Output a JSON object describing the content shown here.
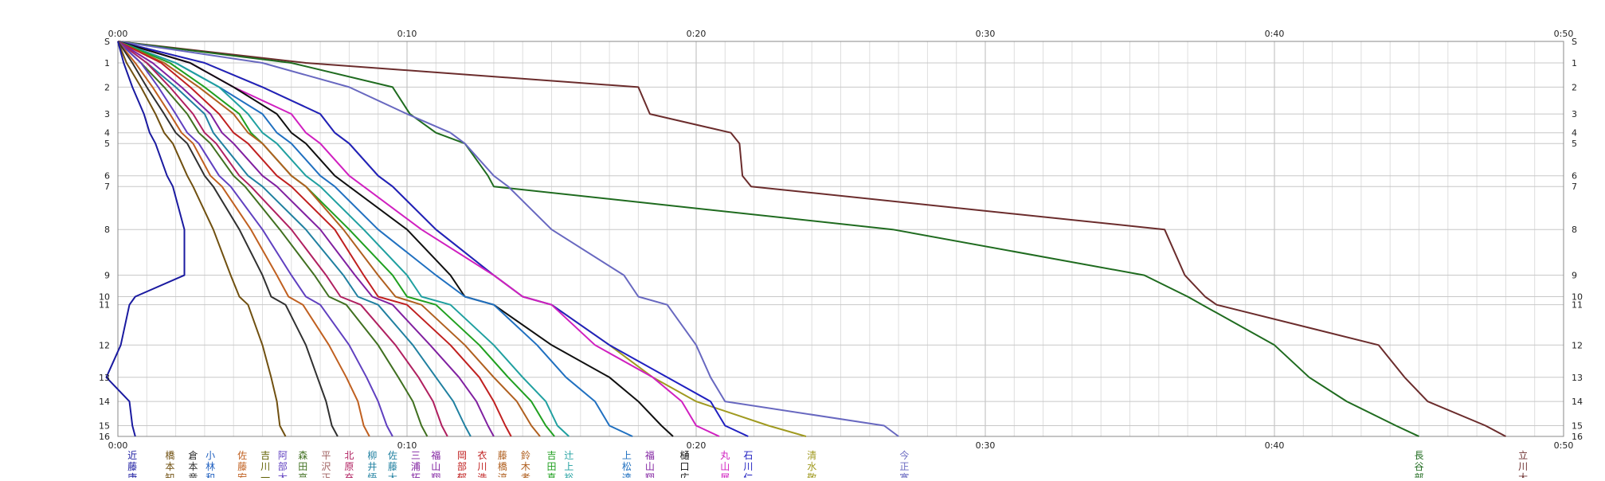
{
  "chart_data": {
    "type": "line",
    "title": "",
    "x_unit": "elapsed time (m:ss)",
    "xlim": [
      0,
      50
    ],
    "x_ticks": [
      {
        "value": 0,
        "label": "0:00"
      },
      {
        "value": 10,
        "label": "0:10"
      },
      {
        "value": 20,
        "label": "0:20"
      },
      {
        "value": 30,
        "label": "0:30"
      },
      {
        "value": 40,
        "label": "0:40"
      },
      {
        "value": 50,
        "label": "0:50"
      }
    ],
    "x_ticks_bottom": [
      {
        "value": 0,
        "label": "0:00"
      },
      {
        "value": 10,
        "label": "0:10"
      },
      {
        "value": 20,
        "label": "0:20"
      },
      {
        "value": 30,
        "label": "0:30"
      },
      {
        "value": 40,
        "label": "0:40"
      },
      {
        "value": 50,
        "label": "0:50"
      }
    ],
    "y_ticks": [
      {
        "value": 0,
        "label": "S"
      },
      {
        "value": 1,
        "label": "1"
      },
      {
        "value": 2,
        "label": "2"
      },
      {
        "value": 3,
        "label": "3"
      },
      {
        "value": 4,
        "label": "4"
      },
      {
        "value": 5,
        "label": "5"
      },
      {
        "value": 6,
        "label": "6"
      },
      {
        "value": 7,
        "label": "7"
      },
      {
        "value": 8,
        "label": "8"
      },
      {
        "value": 9,
        "label": "9"
      },
      {
        "value": 10,
        "label": "10"
      },
      {
        "value": 11,
        "label": "11"
      },
      {
        "value": 12,
        "label": "12"
      },
      {
        "value": 13,
        "label": "13"
      },
      {
        "value": 14,
        "label": "14"
      },
      {
        "value": 15,
        "label": "15"
      },
      {
        "value": 16,
        "label": "16"
      }
    ],
    "control_times": [
      0,
      0.8,
      1.7,
      2.7,
      3.4,
      3.8,
      5.0,
      5.4,
      7.0,
      8.7,
      9.5,
      9.8,
      11.3,
      12.5,
      13.4,
      14.3,
      14.7
    ],
    "grid": true,
    "series": [
      {
        "name": "立川大",
        "color": "#6b2c2c",
        "cum": [
          0.0,
          6.5,
          18.0,
          18.4,
          21.2,
          21.5,
          21.6,
          21.9,
          36.2,
          36.9,
          37.6,
          38.0,
          43.6,
          44.5,
          45.3,
          47.3,
          48.0
        ]
      },
      {
        "name": "長谷部",
        "color": "#1f6b1f",
        "cum": [
          0.0,
          6.0,
          9.5,
          10.1,
          11.0,
          12.0,
          12.8,
          13.0,
          26.8,
          35.5,
          37.0,
          37.5,
          40.0,
          41.2,
          42.5,
          44.2,
          45.0
        ]
      },
      {
        "name": "今正寛",
        "color": "#6868c0",
        "cum": [
          0.0,
          5.0,
          8.0,
          10.0,
          11.5,
          12.0,
          13.0,
          13.5,
          15.0,
          17.5,
          18.0,
          19.0,
          20.0,
          20.5,
          21.0,
          26.5,
          27.0
        ]
      },
      {
        "name": "清水敬",
        "color": "#a09a20",
        "cum": [
          0.0,
          3.0,
          5.0,
          7.0,
          7.5,
          8.0,
          9.0,
          9.5,
          11.0,
          13.0,
          14.0,
          15.0,
          17.0,
          18.5,
          20.0,
          22.5,
          23.8
        ]
      },
      {
        "name": "石川仁",
        "color": "#2020c0",
        "cum": [
          0.0,
          3.0,
          5.0,
          7.0,
          7.5,
          8.0,
          9.0,
          9.5,
          11.0,
          13.0,
          14.0,
          15.0,
          17.0,
          19.0,
          20.5,
          21.0,
          21.8
        ]
      },
      {
        "name": "丸山展",
        "color": "#d020c0",
        "cum": [
          0.0,
          2.5,
          4.0,
          6.0,
          6.5,
          7.0,
          8.0,
          8.5,
          10.5,
          13.0,
          14.0,
          15.0,
          16.5,
          18.5,
          19.5,
          20.0,
          20.8
        ]
      },
      {
        "name": "樋口広",
        "color": "#101010",
        "cum": [
          0.0,
          2.5,
          4.0,
          5.5,
          6.0,
          6.5,
          7.5,
          8.0,
          10.0,
          11.5,
          12.0,
          13.0,
          15.0,
          17.0,
          18.0,
          18.8,
          19.2
        ]
      },
      {
        "name": "上松達",
        "color": "#2070c0",
        "cum": [
          0.0,
          2.0,
          3.5,
          5.0,
          5.5,
          6.0,
          7.0,
          7.5,
          9.0,
          11.0,
          12.0,
          13.0,
          14.5,
          15.5,
          16.5,
          17.0,
          17.8
        ]
      },
      {
        "name": "辻上裕",
        "color": "#20a0a0",
        "cum": [
          0.0,
          2.0,
          3.5,
          4.5,
          5.0,
          5.5,
          6.5,
          7.0,
          8.5,
          10.0,
          10.5,
          11.5,
          13.0,
          14.0,
          14.8,
          15.2,
          15.6
        ]
      },
      {
        "name": "吉田真",
        "color": "#20a020",
        "cum": [
          0.0,
          1.8,
          3.0,
          4.2,
          4.6,
          5.0,
          6.0,
          6.5,
          8.0,
          9.5,
          10.0,
          11.0,
          12.5,
          13.5,
          14.3,
          14.8,
          15.1
        ]
      },
      {
        "name": "鈴木孝",
        "color": "#b06020",
        "cum": [
          0.0,
          1.6,
          2.8,
          4.0,
          4.5,
          5.0,
          6.0,
          6.5,
          7.8,
          9.0,
          9.6,
          10.5,
          12.0,
          13.0,
          13.8,
          14.3,
          14.6
        ]
      },
      {
        "name": "衣川浩",
        "color": "#c02020",
        "cum": [
          0.0,
          1.5,
          2.5,
          3.5,
          4.0,
          4.5,
          5.5,
          6.0,
          7.5,
          8.5,
          9.0,
          10.0,
          11.5,
          12.5,
          13.0,
          13.4,
          13.6
        ]
      },
      {
        "name": "福山翔",
        "color": "#8020a0",
        "cum": [
          0.0,
          1.2,
          2.2,
          3.2,
          3.6,
          4.0,
          5.0,
          5.5,
          7.0,
          8.2,
          8.8,
          9.5,
          10.8,
          11.8,
          12.4,
          12.8,
          13.0
        ]
      },
      {
        "name": "佐藤大",
        "color": "#2080a0",
        "cum": [
          0.0,
          1.0,
          2.0,
          3.0,
          3.3,
          3.6,
          4.5,
          5.0,
          6.5,
          7.8,
          8.3,
          9.0,
          10.2,
          11.0,
          11.6,
          12.0,
          12.2
        ]
      },
      {
        "name": "北原充",
        "color": "#b02060",
        "cum": [
          0.0,
          1.0,
          1.8,
          2.6,
          3.0,
          3.4,
          4.2,
          4.6,
          6.0,
          7.2,
          7.7,
          8.4,
          9.6,
          10.4,
          10.9,
          11.2,
          11.4
        ]
      },
      {
        "name": "森田亮",
        "color": "#407020",
        "cum": [
          0.0,
          0.8,
          1.6,
          2.4,
          2.8,
          3.2,
          4.0,
          4.4,
          5.6,
          6.8,
          7.3,
          7.9,
          9.0,
          9.7,
          10.2,
          10.5,
          10.7
        ]
      },
      {
        "name": "阿部太",
        "color": "#6040c0",
        "cum": [
          0.0,
          0.8,
          1.4,
          2.0,
          2.4,
          2.8,
          3.5,
          3.9,
          5.0,
          6.0,
          6.5,
          7.0,
          8.0,
          8.6,
          9.0,
          9.3,
          9.5
        ]
      },
      {
        "name": "佐藤宏",
        "color": "#c06020",
        "cum": [
          0.0,
          0.6,
          1.2,
          1.8,
          2.2,
          2.6,
          3.2,
          3.6,
          4.6,
          5.5,
          5.9,
          6.4,
          7.3,
          7.9,
          8.3,
          8.5,
          8.7
        ]
      },
      {
        "name": "倉本竜",
        "color": "#303030",
        "cum": [
          0.0,
          0.5,
          1.0,
          1.6,
          2.0,
          2.4,
          3.0,
          3.3,
          4.2,
          5.0,
          5.3,
          5.8,
          6.5,
          6.9,
          7.2,
          7.4,
          7.6
        ]
      },
      {
        "name": "橋本知",
        "color": "#705010",
        "cum": [
          0.0,
          0.3,
          0.8,
          1.3,
          1.6,
          1.9,
          2.4,
          2.6,
          3.3,
          3.9,
          4.2,
          4.5,
          5.0,
          5.3,
          5.5,
          5.6,
          5.8
        ]
      },
      {
        "name": "近藤康",
        "color": "#1a1aa0",
        "cum": [
          0.0,
          0.2,
          0.5,
          0.9,
          1.1,
          1.3,
          1.7,
          1.9,
          2.3,
          2.3,
          0.6,
          0.4,
          0.1,
          -0.4,
          0.4,
          0.5,
          0.6
        ]
      }
    ],
    "bottom_labels": [
      {
        "x": 0.5,
        "text": "近藤康",
        "color": "#1a1aa0"
      },
      {
        "x": 1.8,
        "text": "橋本知",
        "color": "#705010"
      },
      {
        "x": 2.6,
        "text": "倉本竜",
        "color": "#303030"
      },
      {
        "x": 3.2,
        "text": "小林和",
        "color": "#2060c0"
      },
      {
        "x": 4.3,
        "text": "佐藤宏",
        "color": "#c06020"
      },
      {
        "x": 5.1,
        "text": "吉川一",
        "color": "#606000"
      },
      {
        "x": 5.7,
        "text": "阿部太",
        "color": "#6040c0"
      },
      {
        "x": 6.4,
        "text": "森田亮",
        "color": "#407020"
      },
      {
        "x": 7.2,
        "text": "平沢正",
        "color": "#a06060"
      },
      {
        "x": 8.0,
        "text": "北原充",
        "color": "#b02060"
      },
      {
        "x": 8.8,
        "text": "柳井悟",
        "color": "#2080a0"
      },
      {
        "x": 9.5,
        "text": "佐藤大",
        "color": "#2080a0"
      },
      {
        "x": 10.3,
        "text": "三浦拓",
        "color": "#8020a0"
      },
      {
        "x": 11.0,
        "text": "福山翔",
        "color": "#8020a0"
      },
      {
        "x": 11.9,
        "text": "岡部郁",
        "color": "#c02020"
      },
      {
        "x": 12.6,
        "text": "衣川浩",
        "color": "#c02020"
      },
      {
        "x": 13.3,
        "text": "藤橋淳",
        "color": "#b06020"
      },
      {
        "x": 14.1,
        "text": "鈴木孝",
        "color": "#b06020"
      },
      {
        "x": 15.0,
        "text": "吉田真",
        "color": "#20a020"
      },
      {
        "x": 15.6,
        "text": "辻上裕",
        "color": "#20a0a0"
      },
      {
        "x": 17.6,
        "text": "上松達",
        "color": "#2070c0"
      },
      {
        "x": 18.4,
        "text": "福山翔",
        "color": "#8020a0"
      },
      {
        "x": 19.6,
        "text": "樋口広",
        "color": "#101010"
      },
      {
        "x": 21.0,
        "text": "丸山展",
        "color": "#d020c0"
      },
      {
        "x": 21.8,
        "text": "石川仁",
        "color": "#2020c0"
      },
      {
        "x": 24.0,
        "text": "清水敬",
        "color": "#a09a20"
      },
      {
        "x": 27.2,
        "text": "今正寛",
        "color": "#6868c0"
      },
      {
        "x": 45.0,
        "text": "長谷部",
        "color": "#1f6b1f"
      },
      {
        "x": 48.6,
        "text": "立川大",
        "color": "#6b2c2c"
      }
    ]
  }
}
